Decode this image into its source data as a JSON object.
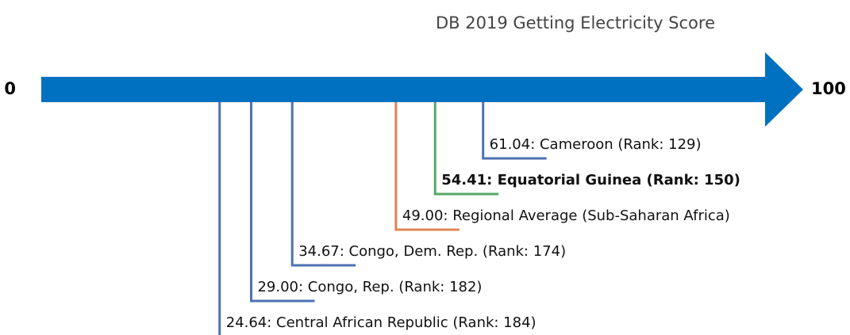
{
  "chart_data": {
    "type": "number-line",
    "title": "DB 2019 Getting Electricity Score",
    "xlim": [
      0,
      100
    ],
    "xticks": [
      0,
      100
    ],
    "values": [
      61.04,
      54.41,
      49,
      34.67,
      29,
      24.64
    ],
    "value_labels": [
      "61.04: Cameroon (Rank: 129)",
      "54.41: Equatorial Guinea (Rank: 150)",
      "49.00: Regional Average (Sub-Saharan Africa)",
      "34.67: Congo, Dem. Rep. (Rank: 174)",
      "29.00: Congo, Rep. (Rank: 182)",
      "24.64: Central African Republic (Rank: 184)"
    ],
    "colors": [
      "#4c72b0",
      "#55a868",
      "#dd8452",
      "#4c72b0",
      "#4c72b0",
      "#4c72b0"
    ],
    "bold": [
      false,
      true,
      false,
      false,
      false,
      false
    ],
    "axis_color": "#0070c0"
  }
}
